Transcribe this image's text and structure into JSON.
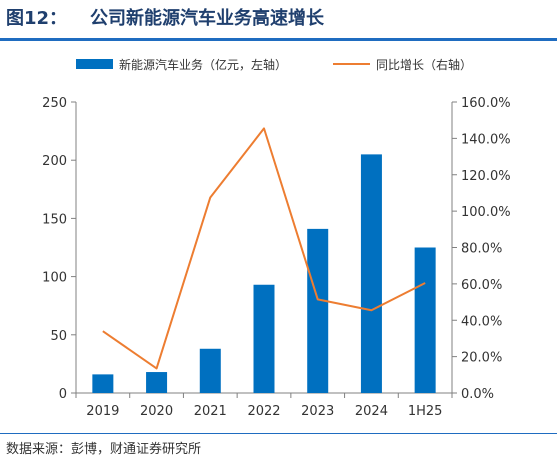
{
  "figure": {
    "label": "图12：",
    "title": "公司新能源汽车业务高速增长",
    "source": "数据来源：彭博，财通证券研究所"
  },
  "colors": {
    "bar": "#0070c0",
    "line": "#ed7d31",
    "axis": "#808080",
    "text": "#333333"
  },
  "chart_data": {
    "type": "bar",
    "categories": [
      "2019",
      "2020",
      "2021",
      "2022",
      "2023",
      "2024",
      "1H25"
    ],
    "series": [
      {
        "name": "新能源汽车业务（亿元，左轴）",
        "type": "bar",
        "axis": "left",
        "values": [
          16,
          18,
          38,
          93,
          141,
          205,
          125
        ]
      },
      {
        "name": "同比增长（右轴）",
        "type": "line",
        "axis": "right",
        "values": [
          34,
          13.5,
          107.5,
          145.5,
          51.5,
          45.5,
          60.5
        ]
      }
    ],
    "left_axis": {
      "min": 0,
      "max": 250,
      "ticks": [
        "0",
        "50",
        "100",
        "150",
        "200",
        "250"
      ]
    },
    "right_axis": {
      "min": 0,
      "max": 160,
      "ticks": [
        "0.0%",
        "20.0%",
        "40.0%",
        "60.0%",
        "80.0%",
        "100.0%",
        "120.0%",
        "140.0%",
        "160.0%"
      ]
    },
    "legend": "top",
    "grid": false
  }
}
